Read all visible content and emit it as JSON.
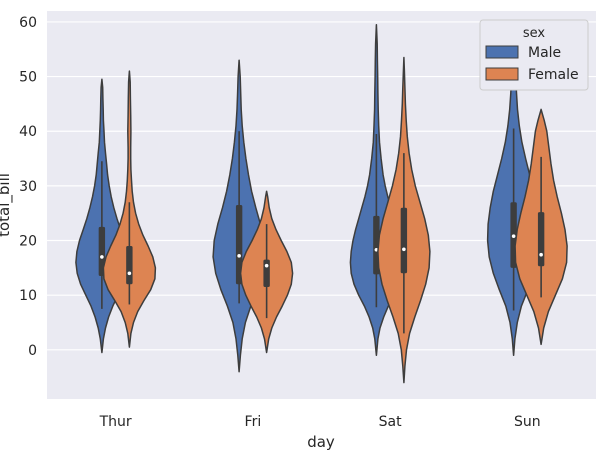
{
  "chart_data": {
    "type": "violin",
    "title": "",
    "xlabel": "day",
    "ylabel": "total_bill",
    "ylim": [
      -9,
      62
    ],
    "yticks": [
      0,
      10,
      20,
      30,
      40,
      50,
      60
    ],
    "categories": [
      "Thur",
      "Fri",
      "Sat",
      "Sun"
    ],
    "grid": true,
    "legend": {
      "title": "sex",
      "placement": "top-right"
    },
    "series": [
      {
        "name": "Male",
        "color": "#4c72b0",
        "violins": [
          {
            "category": "Thur",
            "min": 7.5,
            "q1": 13.5,
            "median": 17.0,
            "q3": 22.5,
            "max": 34.5,
            "kde_y": [
              -0.5,
              2,
              4,
              6,
              8,
              10,
              12,
              14,
              16,
              18,
              20,
              22,
              24,
              26,
              28,
              30,
              32,
              34,
              36,
              38,
              40,
              42,
              44,
              46,
              48,
              49.5
            ],
            "kde_w": [
              0,
              0.06,
              0.14,
              0.26,
              0.42,
              0.62,
              0.82,
              0.95,
              1.0,
              0.96,
              0.86,
              0.72,
              0.58,
              0.46,
              0.36,
              0.28,
              0.22,
              0.18,
              0.14,
              0.1,
              0.08,
              0.06,
              0.05,
              0.04,
              0.03,
              0
            ]
          },
          {
            "category": "Fri",
            "min": 8.5,
            "q1": 12.0,
            "median": 17.2,
            "q3": 26.5,
            "max": 40.0,
            "kde_y": [
              -4,
              -1,
              2,
              5,
              8,
              11,
              14,
              17,
              20,
              23,
              26,
              29,
              32,
              35,
              38,
              41,
              44,
              47,
              50,
              53
            ],
            "kde_w": [
              0,
              0.05,
              0.12,
              0.24,
              0.45,
              0.7,
              0.9,
              1.0,
              0.96,
              0.82,
              0.64,
              0.48,
              0.36,
              0.26,
              0.18,
              0.12,
              0.08,
              0.06,
              0.04,
              0
            ]
          },
          {
            "category": "Sat",
            "min": 7.8,
            "q1": 13.8,
            "median": 18.3,
            "q3": 24.5,
            "max": 39.5,
            "kde_y": [
              -1,
              2,
              4,
              6,
              8,
              10,
              12,
              14,
              16,
              18,
              20,
              22,
              24,
              26,
              28,
              30,
              32,
              35,
              38,
              41,
              44,
              47,
              50,
              53,
              56,
              59.5
            ],
            "kde_w": [
              0,
              0.06,
              0.14,
              0.28,
              0.46,
              0.68,
              0.86,
              0.97,
              1.0,
              0.97,
              0.9,
              0.8,
              0.68,
              0.56,
              0.44,
              0.34,
              0.26,
              0.18,
              0.12,
              0.09,
              0.07,
              0.06,
              0.05,
              0.04,
              0.03,
              0
            ]
          },
          {
            "category": "Sun",
            "min": 7.2,
            "q1": 15.0,
            "median": 20.8,
            "q3": 27.0,
            "max": 40.5,
            "kde_y": [
              -1,
              2,
              5,
              8,
              11,
              14,
              17,
              20,
              23,
              26,
              29,
              32,
              35,
              38,
              41,
              44,
              47,
              50,
              53,
              56
            ],
            "kde_w": [
              0,
              0.05,
              0.14,
              0.3,
              0.55,
              0.78,
              0.94,
              1.0,
              0.98,
              0.9,
              0.78,
              0.62,
              0.46,
              0.32,
              0.22,
              0.15,
              0.11,
              0.08,
              0.05,
              0
            ]
          }
        ]
      },
      {
        "name": "Female",
        "color": "#dd8452",
        "violins": [
          {
            "category": "Thur",
            "min": 8.3,
            "q1": 12.0,
            "median": 14.0,
            "q3": 19.0,
            "max": 27.0,
            "kde_y": [
              0.5,
              3,
              5,
              7,
              9,
              11,
              13,
              15,
              17,
              19,
              21,
              23,
              25,
              27,
              29,
              31,
              33,
              35,
              37,
              40,
              43,
              46,
              49,
              51
            ],
            "kde_w": [
              0,
              0.06,
              0.16,
              0.32,
              0.56,
              0.82,
              0.98,
              1.0,
              0.9,
              0.72,
              0.52,
              0.36,
              0.24,
              0.16,
              0.11,
              0.08,
              0.06,
              0.05,
              0.05,
              0.06,
              0.05,
              0.04,
              0.03,
              0
            ]
          },
          {
            "category": "Fri",
            "min": 5.8,
            "q1": 11.5,
            "median": 15.4,
            "q3": 16.5,
            "max": 23.0,
            "kde_y": [
              -0.5,
              2,
              4,
              6,
              8,
              10,
              12,
              14,
              16,
              18,
              20,
              22,
              24,
              26,
              28,
              29
            ],
            "kde_w": [
              0,
              0.08,
              0.2,
              0.38,
              0.6,
              0.8,
              0.95,
              1.0,
              0.95,
              0.78,
              0.56,
              0.36,
              0.2,
              0.1,
              0.04,
              0
            ]
          },
          {
            "category": "Sat",
            "min": 3.0,
            "q1": 14.0,
            "median": 18.4,
            "q3": 26.0,
            "max": 36.0,
            "kde_y": [
              -6,
              -3,
              0,
              3,
              6,
              9,
              12,
              15,
              18,
              21,
              24,
              27,
              30,
              33,
              36,
              39,
              42,
              45,
              48,
              51,
              53.5
            ],
            "kde_w": [
              0,
              0.04,
              0.1,
              0.22,
              0.42,
              0.64,
              0.84,
              0.97,
              1.0,
              0.94,
              0.8,
              0.62,
              0.44,
              0.3,
              0.2,
              0.13,
              0.09,
              0.06,
              0.04,
              0.02,
              0
            ]
          },
          {
            "category": "Sun",
            "min": 9.6,
            "q1": 15.3,
            "median": 17.4,
            "q3": 25.2,
            "max": 35.3,
            "kde_y": [
              1,
              4,
              7,
              10,
              13,
              16,
              19,
              22,
              25,
              28,
              31,
              34,
              37,
              40,
              42,
              44
            ],
            "kde_w": [
              0,
              0.1,
              0.28,
              0.55,
              0.82,
              0.98,
              1.0,
              0.92,
              0.78,
              0.62,
              0.48,
              0.38,
              0.3,
              0.22,
              0.12,
              0
            ]
          }
        ]
      }
    ]
  }
}
